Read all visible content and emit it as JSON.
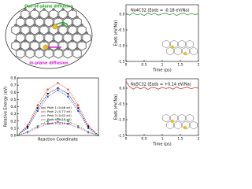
{
  "diagram": {
    "labels": [
      "Out-of-plane diffusion",
      "In-plane diffusion"
    ]
  },
  "chart_data": [
    {
      "type": "line",
      "ylabel": "Relative Energy (eV)",
      "xlabel": "Reaction Coordinate",
      "x": [
        0,
        1,
        2,
        3,
        4,
        5,
        6,
        7,
        8
      ],
      "xlim": [
        0,
        8
      ],
      "ylim": [
        0,
        0.8
      ],
      "yticks": [
        {
          "value": 0,
          "label": "0.0"
        },
        0.1,
        0.2,
        0.3,
        0.4,
        0.5,
        0.6,
        0.7,
        0.8
      ],
      "legend": "center",
      "series": [
        {
          "name": "Path 1 (0.66 eV)",
          "color": "#000000",
          "values": [
            0,
            0.12,
            0.38,
            0.58,
            0.66,
            0.58,
            0.38,
            0.12,
            0
          ]
        },
        {
          "name": "Path 2 (0.73 eV)",
          "color": "#e02020",
          "values": [
            0,
            0.14,
            0.42,
            0.64,
            0.73,
            0.64,
            0.42,
            0.14,
            0
          ]
        },
        {
          "name": "Path 3 (0.63 eV)",
          "color": "#2040e0",
          "values": [
            0,
            0.1,
            0.34,
            0.54,
            0.63,
            0.54,
            0.34,
            0.1,
            0
          ]
        },
        {
          "name": "Path 4 (0.19 eV)",
          "color": "#e020e0",
          "values": [
            0,
            0.04,
            0.11,
            0.16,
            0.19,
            0.16,
            0.11,
            0.04,
            0
          ]
        },
        {
          "name": "Path 5 (0.23 eV)",
          "color": "#20a020",
          "values": [
            0,
            0.05,
            0.13,
            0.2,
            0.23,
            0.2,
            0.13,
            0.05,
            0
          ]
        }
      ]
    },
    {
      "type": "line",
      "title": "Na4C32 (Eads = -0.18 eV/Na)",
      "ylabel": "Eads (eV/Na)",
      "xlabel": "Time (ps)",
      "x": [
        0,
        0.1,
        0.2,
        0.3,
        0.4,
        0.5,
        0.6,
        0.7,
        0.8,
        0.9,
        1,
        1.1,
        1.2,
        1.3,
        1.4,
        1.5,
        1.6,
        1.7,
        1.8,
        1.9,
        2
      ],
      "xlim": [
        0,
        2
      ],
      "xticks": [
        0,
        0.5,
        1,
        1.5,
        2
      ],
      "ylim": [
        -1.5,
        0.3
      ],
      "yticks": [
        {
          "value": 0,
          "label": "0.0"
        },
        -0.5,
        {
          "value": -1,
          "label": "-1.0"
        },
        -1.5
      ],
      "series": [
        {
          "name": null,
          "color": "#1a8a1a",
          "values": [
            0.02,
            -0.03,
            0.04,
            -0.02,
            0.01,
            -0.04,
            0.03,
            -0.01,
            0.02,
            -0.03,
            0.01,
            0.03,
            -0.02,
            0.02,
            -0.04,
            0.01,
            0.03,
            -0.02,
            0.02,
            -0.01,
            0.01
          ]
        }
      ]
    },
    {
      "type": "line",
      "title": "Na5C32 (Eads = +0.14 eV/Na)",
      "ylabel": "Eads (eV/Na)",
      "xlabel": "Time (ps)",
      "x": [
        0,
        0.1,
        0.2,
        0.3,
        0.4,
        0.5,
        0.6,
        0.7,
        0.8,
        0.9,
        1,
        1.1,
        1.2,
        1.3,
        1.4,
        1.5,
        1.6,
        1.7,
        1.8,
        1.9,
        2
      ],
      "xlim": [
        0,
        2
      ],
      "xticks": [
        0,
        0.5,
        1,
        1.5,
        2
      ],
      "ylim": [
        -1.5,
        0.3
      ],
      "yticks": [
        {
          "value": 0,
          "label": "0.0"
        },
        -0.5,
        {
          "value": -1,
          "label": "-1.0"
        },
        -1.5
      ],
      "series": [
        {
          "name": null,
          "color": "#d01818",
          "values": [
            0.22,
            0.05,
            -0.03,
            0.04,
            -0.02,
            0.03,
            -0.04,
            0.02,
            0.01,
            -0.03,
            0.03,
            -0.01,
            0.02,
            -0.03,
            0.04,
            -0.02,
            0.01,
            0.03,
            -0.02,
            0.02,
            0
          ]
        }
      ]
    }
  ]
}
